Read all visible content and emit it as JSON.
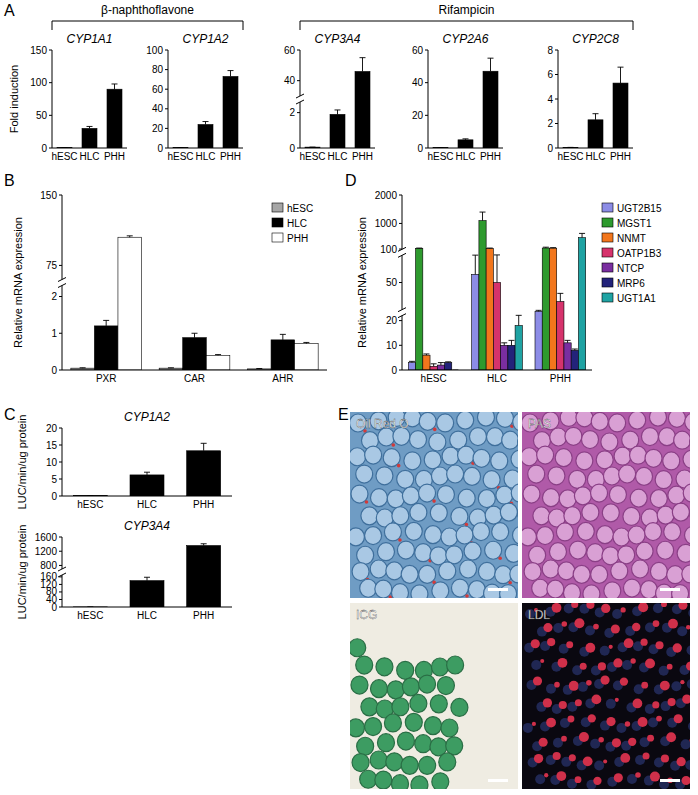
{
  "figure": {
    "panel_labels": [
      "A",
      "B",
      "C",
      "D",
      "E"
    ],
    "group_labels": [
      "β-naphthoflavone",
      "Rifampicin"
    ]
  },
  "chart_data": [
    {
      "type": "bar",
      "title": "CYP1A1",
      "ylabel": "Fold induction",
      "categories": [
        "hESC",
        "HLC",
        "PHH"
      ],
      "values": [
        0.5,
        30,
        90
      ],
      "errors": [
        0,
        3,
        8
      ],
      "color": "#000000",
      "ylim": [
        0,
        150
      ],
      "yticks": [
        0,
        50,
        100,
        150
      ]
    },
    {
      "type": "bar",
      "title": "CYP1A2",
      "categories": [
        "hESC",
        "HLC",
        "PHH"
      ],
      "values": [
        0.5,
        24,
        73
      ],
      "errors": [
        0,
        3,
        6
      ],
      "color": "#000000",
      "ylim": [
        0,
        100
      ],
      "yticks": [
        0,
        20,
        40,
        60,
        80,
        100
      ]
    },
    {
      "type": "bar",
      "title": "CYP3A4",
      "categories": [
        "hESC",
        "HLC",
        "PHH"
      ],
      "values": [
        0.05,
        1.9,
        46
      ],
      "errors": [
        0,
        0.25,
        9
      ],
      "color": "#000000",
      "ylim": [
        0,
        60
      ],
      "ybreaks": [
        [
          2.6,
          30
        ]
      ],
      "yticks": [
        0,
        2,
        40,
        60
      ]
    },
    {
      "type": "bar",
      "title": "CYP2A6",
      "categories": [
        "hESC",
        "HLC",
        "PHH"
      ],
      "values": [
        0.2,
        5,
        47
      ],
      "errors": [
        0,
        0.6,
        8
      ],
      "color": "#000000",
      "ylim": [
        0,
        60
      ],
      "yticks": [
        0,
        20,
        40,
        60
      ]
    },
    {
      "type": "bar",
      "title": "CYP2C8",
      "categories": [
        "hESC",
        "HLC",
        "PHH"
      ],
      "values": [
        0.05,
        2.3,
        5.3
      ],
      "errors": [
        0,
        0.5,
        1.3
      ],
      "color": "#000000",
      "ylim": [
        0,
        8
      ],
      "yticks": [
        0,
        2,
        4,
        6,
        8
      ]
    },
    {
      "type": "bar",
      "ylabel": "Relative mRNA expression",
      "categories": [
        "PXR",
        "CAR",
        "AHR"
      ],
      "series": [
        {
          "name": "hESC",
          "color": "#a6a6a6",
          "values": [
            0.05,
            0.05,
            0.03
          ],
          "errors": [
            0.01,
            0.01,
            0.01
          ]
        },
        {
          "name": "HLC",
          "color": "#000000",
          "values": [
            1.2,
            0.88,
            0.82
          ],
          "errors": [
            0.15,
            0.12,
            0.15
          ]
        },
        {
          "name": "PHH",
          "color": "#ffffff",
          "values": [
            105,
            0.4,
            0.72
          ],
          "errors": [
            1.5,
            0.02,
            0.03
          ]
        }
      ],
      "ylim": [
        0,
        150
      ],
      "ybreaks": [
        [
          2.3,
          60
        ]
      ],
      "yticks": [
        0,
        1,
        2,
        75,
        150
      ],
      "legend": "upper right"
    },
    {
      "type": "bar",
      "title": "CYP1A2",
      "ylabel": "LUC/min/ug protein",
      "categories": [
        "hESC",
        "HLC",
        "PHH"
      ],
      "values": [
        0.1,
        6.2,
        13.3
      ],
      "errors": [
        0,
        0.8,
        2.2
      ],
      "color": "#000000",
      "ylim": [
        0,
        20
      ],
      "yticks": [
        0,
        5,
        10,
        15,
        20
      ]
    },
    {
      "type": "bar",
      "title": "CYP3A4",
      "ylabel": "LUC/min/ug protein",
      "categories": [
        "hESC",
        "HLC",
        "PHH"
      ],
      "values": [
        0.5,
        140,
        1360
      ],
      "errors": [
        0,
        18,
        50
      ],
      "color": "#000000",
      "ylim": [
        0,
        1600
      ],
      "ybreaks": [
        [
          170,
          700
        ]
      ],
      "yticks": [
        0,
        40,
        80,
        120,
        160,
        800,
        1200,
        1600
      ]
    },
    {
      "type": "bar",
      "ylabel": "Relative mRNA expression",
      "categories": [
        "hESC",
        "HLC",
        "PHH"
      ],
      "series": [
        {
          "name": "UGT2B15",
          "color": "#8c8ce6",
          "values": [
            3,
            53,
            35
          ],
          "errors": [
            0.5,
            8,
            3
          ]
        },
        {
          "name": "MGST1",
          "color": "#2e9a2e",
          "values": [
            125,
            1100,
            135
          ],
          "errors": [
            10,
            300,
            30
          ]
        },
        {
          "name": "NNMT",
          "color": "#f2761c",
          "values": [
            6,
            120,
            130
          ],
          "errors": [
            0.5,
            15,
            20
          ]
        },
        {
          "name": "OATP1B3",
          "color": "#d6336c",
          "values": [
            1.5,
            50,
            43
          ],
          "errors": [
            1,
            12,
            3
          ]
        },
        {
          "name": "NTCP",
          "color": "#7a2ea0",
          "values": [
            2,
            10,
            11
          ],
          "errors": [
            1,
            1,
            1
          ]
        },
        {
          "name": "MRP6",
          "color": "#23237a",
          "values": [
            3,
            10,
            8
          ],
          "errors": [
            0.3,
            2,
            0.5
          ]
        },
        {
          "name": "UGT1A1",
          "color": "#1fa3a3",
          "values": [
            0,
            18,
            500
          ],
          "errors": [
            0,
            5,
            150
          ]
        }
      ],
      "ylim": [
        0,
        2000
      ],
      "ybreaks": [
        [
          22,
          40
        ],
        [
          60,
          90
        ]
      ],
      "yticks": [
        0,
        10,
        20,
        50,
        100,
        1000,
        2000
      ],
      "legend": "right"
    }
  ],
  "images": [
    {
      "label": "Oil Red O"
    },
    {
      "label": "PAS"
    },
    {
      "label": "ICG"
    },
    {
      "label": "LDL"
    }
  ]
}
